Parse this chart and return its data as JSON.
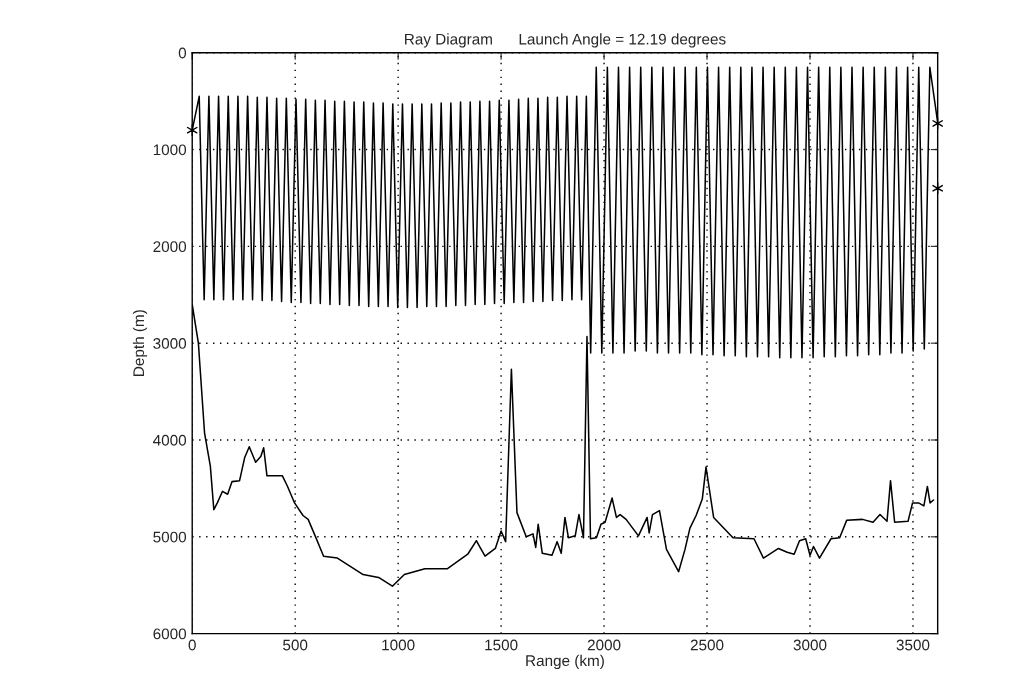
{
  "chart_data": {
    "type": "line",
    "title": "Ray Diagram      Launch Angle = 12.19 degrees",
    "xlabel": "Range (km)",
    "ylabel": "Depth (m)",
    "xlim": [
      0,
      3620
    ],
    "ylim": [
      6000,
      0
    ],
    "xticks": [
      0,
      500,
      1000,
      1500,
      2000,
      2500,
      3000,
      3500
    ],
    "yticks": [
      0,
      1000,
      2000,
      3000,
      4000,
      5000,
      6000
    ],
    "grid": true,
    "marker": "none",
    "line_style": "solid",
    "series": [
      {
        "color": "#000000",
        "x": [
          0,
          34,
          58,
          81,
          105,
          128,
          152,
          175,
          199,
          222,
          246,
          269,
          293,
          316,
          340,
          363,
          387,
          410,
          434,
          457,
          481,
          504,
          528,
          551,
          575,
          598,
          622,
          645,
          669,
          692,
          716,
          739,
          763,
          786,
          810,
          833,
          857,
          880,
          904,
          927,
          951,
          974,
          998,
          1021,
          1045,
          1068,
          1092,
          1115,
          1139,
          1162,
          1186,
          1209,
          1233,
          1256,
          1280,
          1303,
          1327,
          1350,
          1374,
          1397,
          1421,
          1444,
          1468,
          1491,
          1515,
          1538,
          1562,
          1585,
          1609,
          1632,
          1656,
          1679,
          1703,
          1726,
          1750,
          1773,
          1797,
          1820,
          1844,
          1867,
          1891,
          1914,
          1935,
          1962,
          1989,
          2016,
          2043,
          2070,
          2097,
          2124,
          2151,
          2178,
          2205,
          2232,
          2259,
          2286,
          2313,
          2340,
          2367,
          2394,
          2421,
          2448,
          2475,
          2502,
          2529,
          2556,
          2583,
          2610,
          2637,
          2664,
          2691,
          2718,
          2745,
          2772,
          2799,
          2826,
          2853,
          2880,
          2907,
          2934,
          2961,
          2988,
          3015,
          3042,
          3069,
          3096,
          3123,
          3150,
          3177,
          3204,
          3231,
          3258,
          3285,
          3312,
          3339,
          3366,
          3393,
          3420,
          3447,
          3474,
          3501,
          3528,
          3555,
          3582,
          3620
        ],
        "values": [
          800,
          450,
          2550,
          450,
          2550,
          450,
          2550,
          450,
          2550,
          450,
          2550,
          450,
          2550,
          460,
          2560,
          460,
          2560,
          470,
          2570,
          470,
          2580,
          480,
          2580,
          480,
          2590,
          490,
          2590,
          490,
          2600,
          500,
          2600,
          500,
          2610,
          510,
          2610,
          510,
          2620,
          520,
          2620,
          520,
          2620,
          530,
          2630,
          530,
          2630,
          530,
          2630,
          530,
          2620,
          530,
          2620,
          520,
          2620,
          520,
          2610,
          510,
          2610,
          510,
          2600,
          500,
          2600,
          500,
          2590,
          490,
          2590,
          490,
          2580,
          480,
          2580,
          470,
          2570,
          470,
          2570,
          460,
          2560,
          460,
          2560,
          450,
          2550,
          450,
          2550,
          450,
          3100,
          150,
          3100,
          150,
          3100,
          150,
          3100,
          150,
          3080,
          150,
          3080,
          150,
          3100,
          150,
          3100,
          150,
          3100,
          150,
          3100,
          150,
          3120,
          150,
          3120,
          150,
          3130,
          150,
          3130,
          150,
          3140,
          150,
          3140,
          150,
          3140,
          150,
          3150,
          150,
          3150,
          150,
          3150,
          150,
          3150,
          150,
          3140,
          150,
          3140,
          150,
          3130,
          150,
          3130,
          150,
          3120,
          150,
          3120,
          150,
          3100,
          150,
          3100,
          150,
          3080,
          150,
          3060,
          150,
          720
        ]
      },
      {
        "color": "#000000",
        "x": [
          0,
          30,
          60,
          88,
          105,
          122,
          147,
          172,
          193,
          230,
          255,
          277,
          308,
          333,
          347,
          363,
          438,
          463,
          497,
          538,
          563,
          597,
          638,
          705,
          830,
          905,
          972,
          1030,
          1130,
          1238,
          1338,
          1380,
          1393,
          1422,
          1472,
          1500,
          1522,
          1550,
          1577,
          1622,
          1655,
          1668,
          1680,
          1700,
          1747,
          1772,
          1792,
          1810,
          1827,
          1860,
          1878,
          1900,
          1917,
          1934,
          1963,
          1985,
          2005,
          2039,
          2060,
          2078,
          2107,
          2167,
          2209,
          2219,
          2235,
          2269,
          2303,
          2362,
          2393,
          2417,
          2447,
          2477,
          2495,
          2532,
          2626,
          2728,
          2774,
          2847,
          2889,
          2923,
          2949,
          2979,
          3000,
          3017,
          3046,
          3102,
          3144,
          3178,
          3255,
          3306,
          3340,
          3374,
          3391,
          3411,
          3476,
          3498,
          3527,
          3553,
          3570,
          3583,
          3600
        ],
        "values": [
          2600,
          3000,
          3930,
          4270,
          4720,
          4650,
          4530,
          4560,
          4430,
          4420,
          4180,
          4070,
          4230,
          4170,
          4080,
          4370,
          4370,
          4480,
          4650,
          4780,
          4820,
          4990,
          5200,
          5220,
          5390,
          5420,
          5510,
          5390,
          5330,
          5330,
          5180,
          5040,
          5090,
          5200,
          5120,
          4940,
          5050,
          3270,
          4750,
          5000,
          4970,
          5110,
          4870,
          5170,
          5190,
          5050,
          5170,
          4800,
          5010,
          4990,
          4770,
          5010,
          2930,
          5020,
          5010,
          4870,
          4850,
          4600,
          4800,
          4770,
          4820,
          4990,
          4800,
          4960,
          4770,
          4730,
          5130,
          5360,
          5130,
          4910,
          4780,
          4610,
          4280,
          4800,
          5010,
          5020,
          5220,
          5120,
          5160,
          5180,
          5040,
          5020,
          5190,
          5100,
          5220,
          5020,
          5010,
          4830,
          4820,
          4850,
          4770,
          4840,
          4420,
          4850,
          4840,
          4650,
          4650,
          4680,
          4480,
          4650,
          4620
        ]
      },
      {
        "type": "scatter",
        "color": "#000000",
        "marker": "cross",
        "x": [
          0,
          3620,
          3620
        ],
        "values": [
          800,
          730,
          1400
        ]
      }
    ]
  }
}
